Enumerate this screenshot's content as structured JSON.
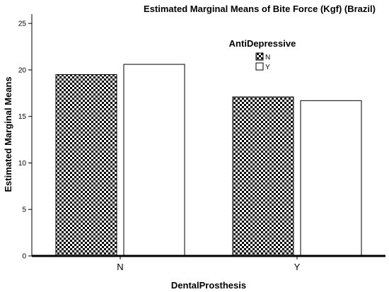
{
  "chart_data": {
    "type": "bar",
    "title": "Estimated Marginal Means of Bite Force (Kgf) (Brazil)",
    "xlabel": "DentalProsthesis",
    "ylabel": "Estimated Marginal Means",
    "categories": [
      "N",
      "Y"
    ],
    "ylim": [
      0,
      26
    ],
    "yticks": [
      "0",
      "5",
      "10",
      "15",
      "20",
      "25"
    ],
    "grid": false,
    "legend": {
      "title": "AntiDepressive",
      "placement": "top-right"
    },
    "series": [
      {
        "name": "N",
        "values": [
          19.5,
          17.1
        ],
        "fill": "checkered"
      },
      {
        "name": "Y",
        "values": [
          20.6,
          16.7
        ],
        "fill": "#ffffff"
      }
    ]
  }
}
